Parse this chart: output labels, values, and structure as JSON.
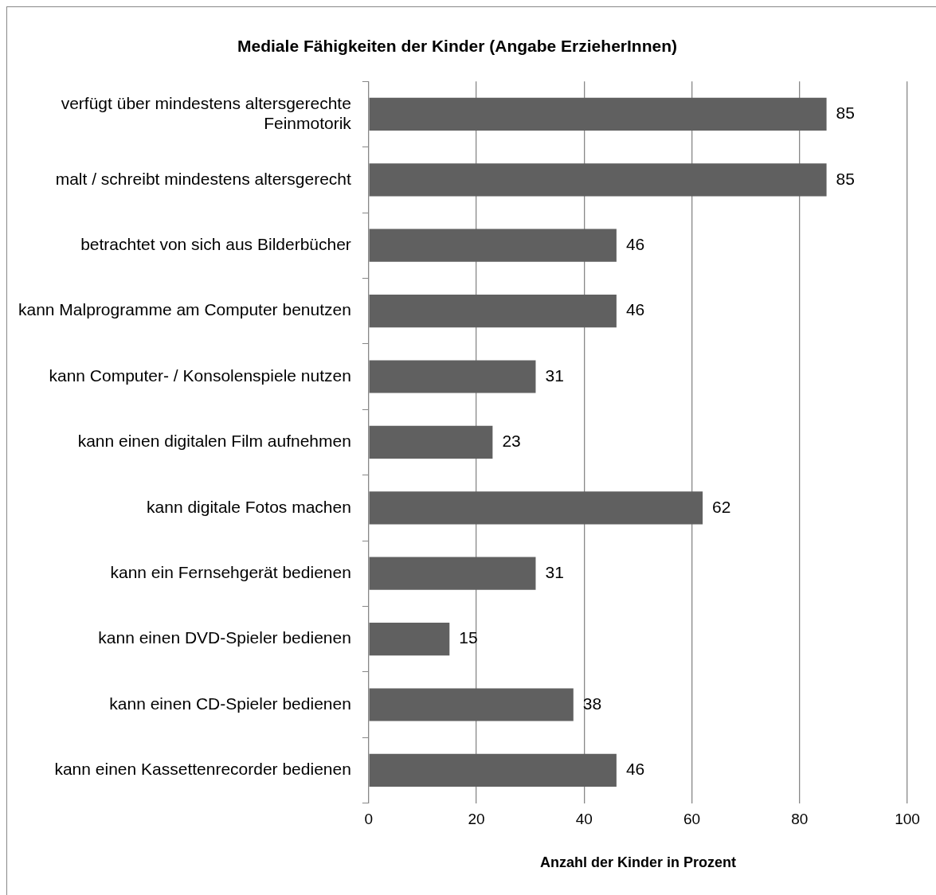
{
  "chart_data": {
    "type": "bar",
    "orientation": "horizontal",
    "title": "Mediale Fähigkeiten der Kinder (Angabe ErzieherInnen)",
    "xlabel": "Anzahl der Kinder in Prozent",
    "categories": [
      "verfügt über mindestens altersgerechte Feinmotorik",
      "malt / schreibt mindestens altersgerecht",
      "betrachtet von sich aus Bilderbücher",
      "kann Malprogramme am Computer benutzen",
      "kann Computer- / Konsolenspiele nutzen",
      "kann einen digitalen Film aufnehmen",
      "kann digitale Fotos machen",
      "kann ein Fernsehgerät bedienen",
      "kann einen DVD-Spieler bedienen",
      "kann einen CD-Spieler bedienen",
      "kann einen Kassettenrecorder bedienen"
    ],
    "values": [
      85,
      85,
      46,
      46,
      31,
      23,
      62,
      31,
      15,
      38,
      46
    ],
    "color": "#606060",
    "xlim": [
      0,
      100
    ],
    "xticks": [
      0,
      20,
      40,
      60,
      80,
      100
    ],
    "grid": "x",
    "legend": false,
    "data_labels": true
  }
}
